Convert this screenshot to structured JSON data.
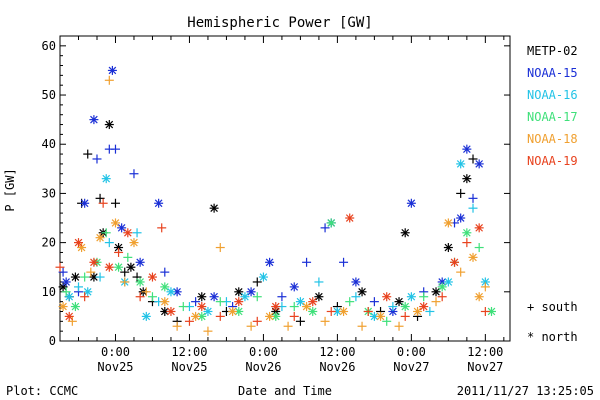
{
  "chart_data": {
    "type": "scatter",
    "title": "Hemispheric Power [GW]",
    "ylabel": "P [GW]",
    "xlabel": "Date and Time",
    "ylim": [
      0,
      62
    ],
    "yticks": [
      0,
      10,
      20,
      30,
      40,
      50,
      60
    ],
    "xticks": [
      {
        "hour": 0,
        "line1": "0:00",
        "line2": "Nov25"
      },
      {
        "hour": 12,
        "line1": "12:00",
        "line2": "Nov25"
      },
      {
        "hour": 24,
        "line1": "0:00",
        "line2": "Nov26"
      },
      {
        "hour": 36,
        "line1": "12:00",
        "line2": "Nov26"
      },
      {
        "hour": 48,
        "line1": "0:00",
        "line2": "Nov27"
      },
      {
        "hour": 60,
        "line1": "12:00",
        "line2": "Nov27"
      }
    ],
    "xlim": [
      -9,
      64
    ],
    "legend": {
      "placement": "right",
      "series_colors": {
        "METP-02": "#000000",
        "NOAA-15": "#1a2fd6",
        "NOAA-16": "#22c3e6",
        "NOAA-17": "#3fe07a",
        "NOAA-18": "#f0a030",
        "NOAA-19": "#e8421e"
      },
      "symbols": [
        {
          "symbol": "+",
          "label": "south"
        },
        {
          "symbol": "*",
          "label": "north"
        }
      ]
    },
    "series": [
      {
        "name": "METP-02",
        "color": "#000000",
        "points": [
          [
            -8.5,
            11,
            "*"
          ],
          [
            -7.5,
            9,
            "+"
          ],
          [
            -6.5,
            13,
            "*"
          ],
          [
            -5.5,
            28,
            "+"
          ],
          [
            -4.5,
            38,
            "+"
          ],
          [
            -3.5,
            13,
            "*"
          ],
          [
            -2.5,
            29,
            "+"
          ],
          [
            -2,
            22,
            "*"
          ],
          [
            -1,
            44,
            "*"
          ],
          [
            0,
            28,
            "+"
          ],
          [
            0.5,
            19,
            "*"
          ],
          [
            1.5,
            14,
            "+"
          ],
          [
            2.5,
            15,
            "*"
          ],
          [
            3.5,
            13,
            "+"
          ],
          [
            4.5,
            10,
            "*"
          ],
          [
            6,
            8,
            "+"
          ],
          [
            8,
            6,
            "*"
          ],
          [
            10,
            4,
            "+"
          ],
          [
            14,
            9,
            "*"
          ],
          [
            16,
            27,
            "*"
          ],
          [
            18,
            6,
            "+"
          ],
          [
            20,
            10,
            "*"
          ],
          [
            23,
            12,
            "+"
          ],
          [
            26,
            6,
            "*"
          ],
          [
            30,
            4,
            "+"
          ],
          [
            33,
            9,
            "*"
          ],
          [
            36,
            7,
            "+"
          ],
          [
            40,
            10,
            "*"
          ],
          [
            43,
            6,
            "+"
          ],
          [
            46,
            8,
            "*"
          ],
          [
            47,
            22,
            "*"
          ],
          [
            49,
            5,
            "+"
          ],
          [
            52,
            10,
            "*"
          ],
          [
            54,
            19,
            "*"
          ],
          [
            56,
            30,
            "+"
          ],
          [
            57,
            33,
            "*"
          ],
          [
            58,
            37,
            "+"
          ]
        ]
      },
      {
        "name": "NOAA-15",
        "color": "#1a2fd6",
        "points": [
          [
            -8.5,
            14,
            "+"
          ],
          [
            -8,
            12,
            "*"
          ],
          [
            -6,
            10,
            "+"
          ],
          [
            -5,
            28,
            "*"
          ],
          [
            -3.5,
            45,
            "*"
          ],
          [
            -3,
            37,
            "+"
          ],
          [
            -1,
            39,
            "+"
          ],
          [
            -0.5,
            55,
            "*"
          ],
          [
            0,
            39,
            "+"
          ],
          [
            1,
            23,
            "*"
          ],
          [
            3,
            34,
            "+"
          ],
          [
            4,
            16,
            "*"
          ],
          [
            7,
            28,
            "*"
          ],
          [
            8,
            14,
            "+"
          ],
          [
            10,
            10,
            "*"
          ],
          [
            13,
            8,
            "+"
          ],
          [
            16,
            9,
            "*"
          ],
          [
            19,
            7,
            "+"
          ],
          [
            22,
            10,
            "*"
          ],
          [
            25,
            16,
            "*"
          ],
          [
            27,
            9,
            "+"
          ],
          [
            29,
            11,
            "*"
          ],
          [
            31,
            16,
            "+"
          ],
          [
            34,
            23,
            "+"
          ],
          [
            35,
            24,
            "*"
          ],
          [
            37,
            16,
            "+"
          ],
          [
            39,
            12,
            "*"
          ],
          [
            42,
            8,
            "+"
          ],
          [
            45,
            6,
            "*"
          ],
          [
            48,
            28,
            "*"
          ],
          [
            50,
            10,
            "+"
          ],
          [
            53,
            12,
            "*"
          ],
          [
            55,
            24,
            "+"
          ],
          [
            56,
            25,
            "*"
          ],
          [
            57,
            39,
            "*"
          ],
          [
            58,
            29,
            "+"
          ],
          [
            59,
            36,
            "*"
          ]
        ]
      },
      {
        "name": "NOAA-16",
        "color": "#22c3e6",
        "points": [
          [
            -7.5,
            9,
            "*"
          ],
          [
            -6,
            11,
            "+"
          ],
          [
            -4.5,
            10,
            "*"
          ],
          [
            -2.5,
            13,
            "+"
          ],
          [
            -1.5,
            33,
            "*"
          ],
          [
            -1,
            20,
            "+"
          ],
          [
            1.5,
            12,
            "*"
          ],
          [
            3.5,
            22,
            "+"
          ],
          [
            5,
            5,
            "*"
          ],
          [
            7,
            8,
            "+"
          ],
          [
            9,
            10,
            "*"
          ],
          [
            12,
            7,
            "+"
          ],
          [
            15,
            6,
            "*"
          ],
          [
            18,
            8,
            "+"
          ],
          [
            21,
            9,
            "*"
          ],
          [
            24,
            13,
            "*"
          ],
          [
            27,
            7,
            "+"
          ],
          [
            30,
            8,
            "*"
          ],
          [
            33,
            12,
            "+"
          ],
          [
            36,
            6,
            "*"
          ],
          [
            39,
            9,
            "+"
          ],
          [
            42,
            5,
            "*"
          ],
          [
            45,
            7,
            "+"
          ],
          [
            48,
            9,
            "*"
          ],
          [
            51,
            6,
            "+"
          ],
          [
            54,
            12,
            "*"
          ],
          [
            56,
            36,
            "*"
          ],
          [
            58,
            27,
            "+"
          ],
          [
            60,
            12,
            "*"
          ]
        ]
      },
      {
        "name": "NOAA-17",
        "color": "#3fe07a",
        "points": [
          [
            -8,
            10,
            "+"
          ],
          [
            -6.5,
            7,
            "*"
          ],
          [
            -5,
            13,
            "+"
          ],
          [
            -3,
            16,
            "*"
          ],
          [
            -1.5,
            22,
            "+"
          ],
          [
            0.5,
            15,
            "*"
          ],
          [
            2,
            17,
            "+"
          ],
          [
            4,
            12,
            "*"
          ],
          [
            6,
            9,
            "+"
          ],
          [
            8,
            11,
            "*"
          ],
          [
            11,
            7,
            "+"
          ],
          [
            14,
            5,
            "*"
          ],
          [
            17,
            8,
            "+"
          ],
          [
            20,
            6,
            "*"
          ],
          [
            23,
            9,
            "+"
          ],
          [
            26,
            5,
            "*"
          ],
          [
            29,
            7,
            "+"
          ],
          [
            32,
            6,
            "*"
          ],
          [
            35,
            24,
            "*"
          ],
          [
            38,
            8,
            "+"
          ],
          [
            41,
            6,
            "*"
          ],
          [
            44,
            4,
            "+"
          ],
          [
            47,
            7,
            "*"
          ],
          [
            50,
            9,
            "+"
          ],
          [
            53,
            11,
            "*"
          ],
          [
            55,
            16,
            "+"
          ],
          [
            57,
            22,
            "*"
          ],
          [
            59,
            19,
            "+"
          ],
          [
            61,
            6,
            "*"
          ]
        ]
      },
      {
        "name": "NOAA-18",
        "color": "#f0a030",
        "points": [
          [
            -8.5,
            7,
            "*"
          ],
          [
            -7,
            4,
            "+"
          ],
          [
            -5.5,
            19,
            "*"
          ],
          [
            -4,
            14,
            "+"
          ],
          [
            -2.5,
            21,
            "*"
          ],
          [
            -1,
            53,
            "+"
          ],
          [
            0,
            24,
            "*"
          ],
          [
            1.5,
            12,
            "+"
          ],
          [
            3,
            20,
            "*"
          ],
          [
            5,
            10,
            "+"
          ],
          [
            8,
            8,
            "*"
          ],
          [
            10,
            3,
            "+"
          ],
          [
            13,
            5,
            "*"
          ],
          [
            15,
            2,
            "+"
          ],
          [
            17,
            19,
            "+"
          ],
          [
            19,
            6,
            "*"
          ],
          [
            22,
            3,
            "+"
          ],
          [
            25,
            5,
            "*"
          ],
          [
            28,
            3,
            "+"
          ],
          [
            31,
            7,
            "*"
          ],
          [
            34,
            4,
            "+"
          ],
          [
            37,
            6,
            "*"
          ],
          [
            40,
            3,
            "+"
          ],
          [
            43,
            5,
            "*"
          ],
          [
            46,
            3,
            "+"
          ],
          [
            49,
            6,
            "*"
          ],
          [
            52,
            8,
            "+"
          ],
          [
            54,
            24,
            "*"
          ],
          [
            56,
            14,
            "+"
          ],
          [
            58,
            17,
            "*"
          ],
          [
            59,
            9,
            "*"
          ],
          [
            60,
            11,
            "+"
          ]
        ]
      },
      {
        "name": "NOAA-19",
        "color": "#e8421e",
        "points": [
          [
            -9,
            15,
            "+"
          ],
          [
            -7.5,
            5,
            "*"
          ],
          [
            -6,
            20,
            "*"
          ],
          [
            -5,
            9,
            "+"
          ],
          [
            -3.5,
            16,
            "*"
          ],
          [
            -2,
            28,
            "+"
          ],
          [
            -1,
            15,
            "*"
          ],
          [
            0.5,
            18,
            "+"
          ],
          [
            2,
            22,
            "*"
          ],
          [
            4,
            9,
            "+"
          ],
          [
            6,
            13,
            "*"
          ],
          [
            7.5,
            23,
            "+"
          ],
          [
            9,
            6,
            "*"
          ],
          [
            12,
            4,
            "+"
          ],
          [
            14,
            7,
            "*"
          ],
          [
            17,
            5,
            "+"
          ],
          [
            20,
            8,
            "*"
          ],
          [
            23,
            4,
            "+"
          ],
          [
            26,
            7,
            "*"
          ],
          [
            29,
            5,
            "+"
          ],
          [
            32,
            8,
            "*"
          ],
          [
            35,
            6,
            "+"
          ],
          [
            38,
            25,
            "*"
          ],
          [
            41,
            6,
            "+"
          ],
          [
            44,
            9,
            "*"
          ],
          [
            47,
            5,
            "+"
          ],
          [
            50,
            7,
            "*"
          ],
          [
            53,
            9,
            "+"
          ],
          [
            55,
            16,
            "*"
          ],
          [
            57,
            20,
            "+"
          ],
          [
            59,
            23,
            "*"
          ],
          [
            60,
            6,
            "+"
          ]
        ]
      }
    ]
  },
  "footer": {
    "left": "Plot: CCMC",
    "center": "Date and Time",
    "right": "2011/11/27 13:25:05"
  }
}
